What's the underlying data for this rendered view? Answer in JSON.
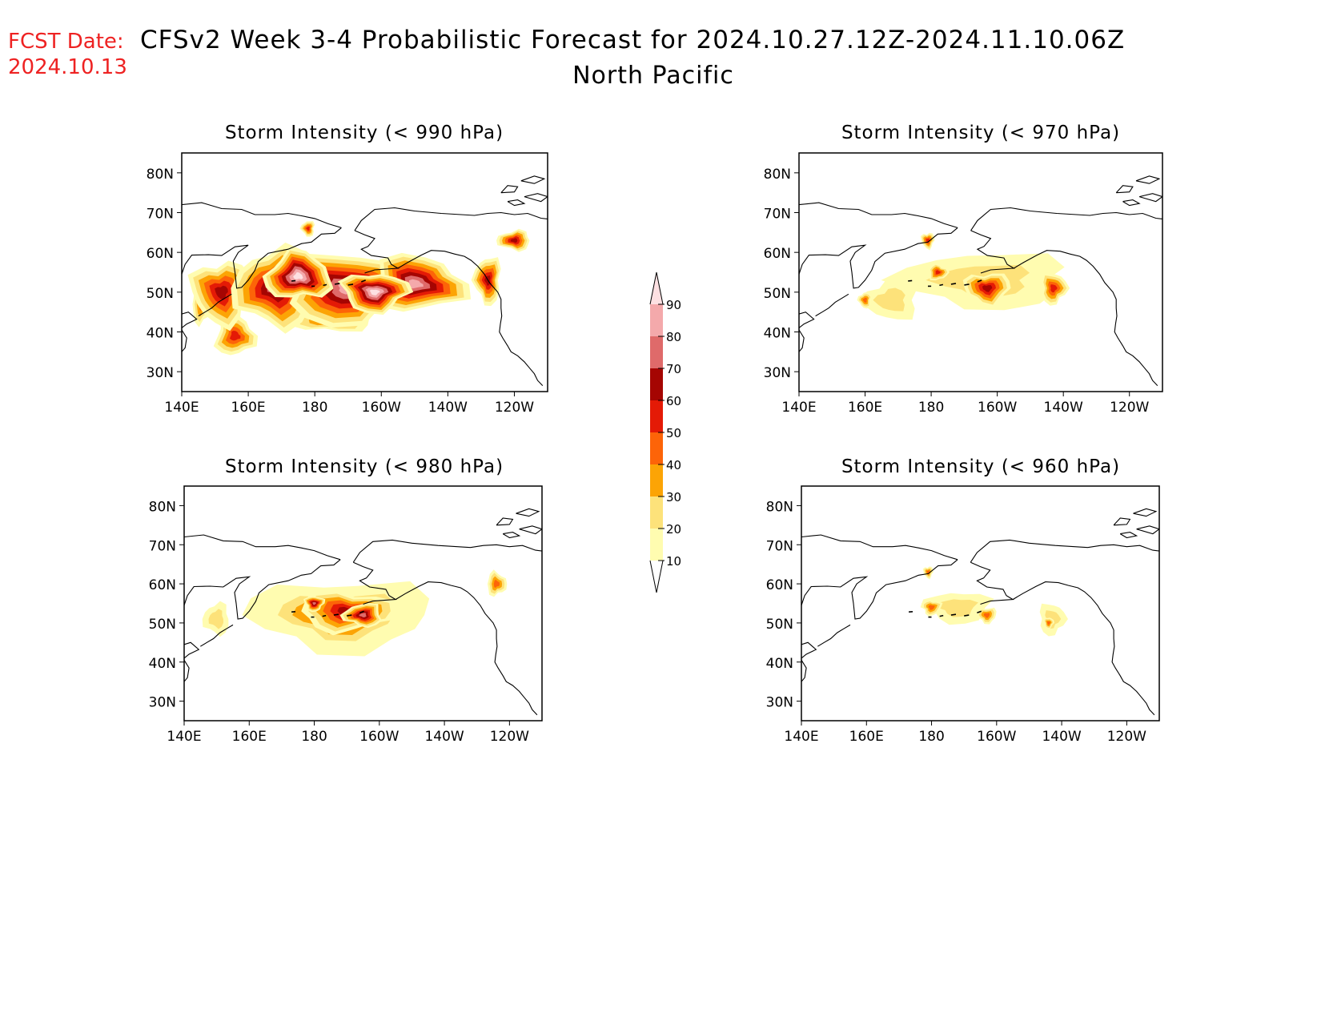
{
  "header": {
    "fcst_label": "FCST Date:",
    "fcst_date": "2024.10.13",
    "title": "CFSv2 Week 3-4 Probabilistic Forecast for 2024.10.27.12Z-2024.11.10.06Z",
    "subtitle": "North Pacific"
  },
  "colors": {
    "fcst": "#ee2222",
    "levels": [
      "#fffcb0",
      "#fde27a",
      "#fca405",
      "#fd6408",
      "#e41a06",
      "#a50502",
      "#df6a6a",
      "#f4a9ab",
      "#fde0e2"
    ]
  },
  "legend": {
    "thresholds": [
      10,
      20,
      30,
      40,
      50,
      60,
      70,
      80,
      90
    ]
  },
  "map_axes": {
    "lat_ticks": [
      "80N",
      "70N",
      "60N",
      "50N",
      "40N",
      "30N"
    ],
    "lon_ticks": [
      "140E",
      "160E",
      "180",
      "160W",
      "140W",
      "120W"
    ]
  },
  "panels": [
    {
      "id": "p990",
      "title": "Storm Intensity (< 990 hPa)",
      "blobs": [
        {
          "lon": 152,
          "lat": 50,
          "rx": 9,
          "ry": 8,
          "level": 5
        },
        {
          "lon": 168,
          "lat": 51,
          "rx": 12,
          "ry": 10,
          "level": 6
        },
        {
          "lon": 190,
          "lat": 51,
          "rx": 20,
          "ry": 9,
          "level": 7
        },
        {
          "lon": 210,
          "lat": 52,
          "rx": 15,
          "ry": 7,
          "level": 7
        },
        {
          "lon": 175,
          "lat": 54,
          "rx": 10,
          "ry": 6,
          "level": 8
        },
        {
          "lon": 198,
          "lat": 50,
          "rx": 10,
          "ry": 5,
          "level": 8
        },
        {
          "lon": 156,
          "lat": 39,
          "rx": 6,
          "ry": 5,
          "level": 4
        },
        {
          "lon": 185,
          "lat": 43,
          "rx": 12,
          "ry": 3,
          "level": 3
        },
        {
          "lon": 232,
          "lat": 53,
          "rx": 4,
          "ry": 6,
          "level": 5
        },
        {
          "lon": 240,
          "lat": 63,
          "rx": 5,
          "ry": 2.5,
          "level": 5
        },
        {
          "lon": 178,
          "lat": 66,
          "rx": 2,
          "ry": 2,
          "level": 4
        },
        {
          "lon": 146,
          "lat": 47,
          "rx": 3,
          "ry": 5,
          "level": 3
        }
      ]
    },
    {
      "id": "p970",
      "title": "Storm Intensity (< 970 hPa)",
      "blobs": [
        {
          "lon": 196,
          "lat": 53,
          "rx": 25,
          "ry": 7,
          "level": 1
        },
        {
          "lon": 168,
          "lat": 48,
          "rx": 8,
          "ry": 5,
          "level": 1
        },
        {
          "lon": 182,
          "lat": 55,
          "rx": 3,
          "ry": 2,
          "level": 4
        },
        {
          "lon": 197,
          "lat": 51,
          "rx": 7,
          "ry": 4,
          "level": 5
        },
        {
          "lon": 217,
          "lat": 51,
          "rx": 4,
          "ry": 4,
          "level": 4
        },
        {
          "lon": 160,
          "lat": 48,
          "rx": 2,
          "ry": 2,
          "level": 3
        },
        {
          "lon": 179,
          "lat": 63,
          "rx": 2,
          "ry": 2,
          "level": 4
        }
      ]
    },
    {
      "id": "p980",
      "title": "Storm Intensity (< 980 hPa)",
      "blobs": [
        {
          "lon": 188,
          "lat": 52,
          "rx": 28,
          "ry": 9,
          "level": 2
        },
        {
          "lon": 188,
          "lat": 52,
          "rx": 22,
          "ry": 7,
          "level": 4
        },
        {
          "lon": 190,
          "lat": 53,
          "rx": 15,
          "ry": 5,
          "level": 5
        },
        {
          "lon": 195,
          "lat": 52,
          "rx": 6,
          "ry": 3,
          "level": 6
        },
        {
          "lon": 180,
          "lat": 55,
          "rx": 3,
          "ry": 2,
          "level": 6
        },
        {
          "lon": 150,
          "lat": 51,
          "rx": 4,
          "ry": 4,
          "level": 1
        },
        {
          "lon": 236,
          "lat": 60,
          "rx": 3,
          "ry": 3,
          "level": 3
        }
      ]
    },
    {
      "id": "p960",
      "title": "Storm Intensity (< 960 hPa)",
      "blobs": [
        {
          "lon": 188,
          "lat": 54,
          "rx": 10,
          "ry": 4,
          "level": 1
        },
        {
          "lon": 217,
          "lat": 51,
          "rx": 4,
          "ry": 4,
          "level": 1
        },
        {
          "lon": 180,
          "lat": 54,
          "rx": 3,
          "ry": 2,
          "level": 3
        },
        {
          "lon": 197,
          "lat": 52,
          "rx": 3,
          "ry": 2,
          "level": 3
        },
        {
          "lon": 216,
          "lat": 50,
          "rx": 1.5,
          "ry": 1.5,
          "level": 3
        },
        {
          "lon": 179,
          "lat": 63,
          "rx": 1.5,
          "ry": 1.5,
          "level": 3
        }
      ]
    }
  ]
}
